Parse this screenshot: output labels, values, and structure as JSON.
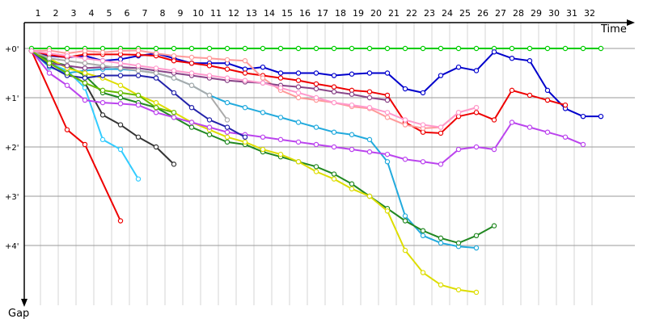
{
  "chart_data": {
    "type": "line",
    "title": "",
    "xlabel": "Time",
    "ylabel": "Gap",
    "x_ticks": [
      "1",
      "2",
      "3",
      "4",
      "5",
      "6",
      "7",
      "8",
      "9",
      "10",
      "11",
      "12",
      "13",
      "14",
      "15",
      "16",
      "17",
      "18",
      "19",
      "20",
      "21",
      "22",
      "23",
      "24",
      "25",
      "26",
      "27",
      "28",
      "29",
      "30",
      "31",
      "32"
    ],
    "y_ticks": [
      "+0'",
      "+1'",
      "+2'",
      "+3'",
      "+4'"
    ],
    "y_unit": "minutes",
    "xlim": [
      0,
      33
    ],
    "ylim": [
      0,
      5.0
    ],
    "y_direction": "down",
    "grid": true,
    "legend": "none",
    "series": [
      {
        "color": "#00cc00",
        "x": [
          1,
          2,
          3,
          4,
          5,
          6,
          7,
          8,
          9,
          10,
          11,
          12,
          13,
          14,
          15,
          16,
          17,
          18,
          19,
          20,
          21,
          22,
          23,
          24,
          25,
          26,
          27,
          28,
          29,
          30,
          31,
          32,
          33
        ],
        "values": [
          0,
          0,
          0,
          0,
          0,
          0,
          0,
          0,
          0,
          0,
          0,
          0,
          0,
          0,
          0,
          0,
          0,
          0,
          0,
          0,
          0,
          0,
          0,
          0,
          0,
          0,
          0,
          0,
          0,
          0,
          0,
          0,
          0
        ]
      },
      {
        "color": "#0000cc",
        "x": [
          1,
          2,
          3,
          4,
          5,
          6,
          7,
          8,
          9,
          10,
          11,
          12,
          13,
          14,
          15,
          16,
          17,
          18,
          19,
          20,
          21,
          22,
          23,
          24,
          25,
          26,
          27,
          28,
          29,
          30,
          31,
          32,
          33
        ],
        "values": [
          0.05,
          0.15,
          0.18,
          0.15,
          0.25,
          0.22,
          0.15,
          0.1,
          0.2,
          0.3,
          0.3,
          0.3,
          0.42,
          0.38,
          0.5,
          0.5,
          0.5,
          0.55,
          0.52,
          0.5,
          0.5,
          0.82,
          0.9,
          0.55,
          0.38,
          0.45,
          0.07,
          0.2,
          0.25,
          0.85,
          1.22,
          1.38,
          1.38
        ]
      },
      {
        "color": "#ee0000",
        "x": [
          1,
          2,
          3,
          4,
          5,
          6,
          7,
          8,
          9,
          10,
          11,
          12,
          13,
          14,
          15,
          16,
          17,
          18,
          19,
          20,
          21,
          22,
          23,
          24,
          25,
          26,
          27,
          28,
          29,
          30,
          31
        ],
        "values": [
          0.05,
          0.13,
          0.18,
          0.12,
          0.12,
          0.12,
          0.13,
          0.15,
          0.25,
          0.3,
          0.35,
          0.42,
          0.5,
          0.55,
          0.6,
          0.65,
          0.72,
          0.78,
          0.85,
          0.88,
          0.95,
          1.5,
          1.7,
          1.72,
          1.38,
          1.3,
          1.45,
          0.85,
          0.95,
          1.05,
          1.15
        ]
      },
      {
        "color": "#ff9999",
        "x": [
          1,
          2,
          3,
          4,
          5,
          6,
          7,
          8,
          9,
          10,
          11,
          12,
          13,
          14,
          15,
          16,
          17,
          18,
          19,
          20,
          21,
          22,
          23,
          24,
          25,
          26
        ],
        "values": [
          0.05,
          0.04,
          0.1,
          0.05,
          0.08,
          0.05,
          0.04,
          0.1,
          0.15,
          0.18,
          0.2,
          0.23,
          0.25,
          0.6,
          0.85,
          1.0,
          1.05,
          1.1,
          1.18,
          1.22,
          1.4,
          1.55,
          1.62,
          1.6,
          1.3,
          1.2
        ]
      },
      {
        "color": "#ee0000",
        "x": [
          1,
          3,
          4,
          6
        ],
        "values": [
          0.05,
          1.65,
          1.95,
          3.5
        ]
      },
      {
        "color": "#33ccff",
        "x": [
          1,
          2,
          3,
          4,
          5,
          6,
          7
        ],
        "values": [
          0.05,
          0.3,
          0.45,
          0.8,
          1.85,
          2.05,
          2.65
        ]
      },
      {
        "color": "#333333",
        "x": [
          1,
          2,
          3,
          4,
          5,
          6,
          7,
          8,
          9
        ],
        "values": [
          0.05,
          0.3,
          0.5,
          0.7,
          1.35,
          1.55,
          1.8,
          2.0,
          2.35
        ]
      },
      {
        "color": "#22aadd",
        "x": [
          1,
          2,
          3,
          4,
          5,
          6,
          7,
          8,
          9,
          10,
          11,
          12,
          13,
          14,
          15,
          16,
          17,
          18,
          19,
          20,
          21,
          22,
          23,
          24,
          25,
          26
        ],
        "values": [
          0.05,
          0.38,
          0.5,
          0.45,
          0.42,
          0.42,
          0.45,
          0.5,
          0.6,
          0.75,
          0.95,
          1.1,
          1.2,
          1.3,
          1.4,
          1.5,
          1.6,
          1.7,
          1.75,
          1.85,
          2.3,
          3.4,
          3.8,
          3.95,
          4.02,
          4.05
        ]
      },
      {
        "color": "#228822",
        "x": [
          1,
          2,
          3,
          4,
          5,
          6,
          7,
          8,
          9,
          10,
          11,
          12,
          13,
          14,
          15,
          16,
          17,
          18,
          19,
          20,
          21,
          22,
          23,
          24,
          25,
          26,
          27
        ],
        "values": [
          0.05,
          0.25,
          0.35,
          0.55,
          0.9,
          1.0,
          1.1,
          1.2,
          1.4,
          1.6,
          1.75,
          1.9,
          1.95,
          2.1,
          2.2,
          2.3,
          2.4,
          2.55,
          2.75,
          3.0,
          3.25,
          3.5,
          3.7,
          3.85,
          3.95,
          3.8,
          3.6
        ]
      },
      {
        "color": "#dddd00",
        "x": [
          1,
          2,
          3,
          4,
          5,
          6,
          7,
          8,
          9,
          10,
          11,
          12,
          13,
          14,
          15,
          16,
          17,
          18,
          19,
          20,
          21,
          22,
          23,
          24,
          25,
          26
        ],
        "values": [
          0.05,
          0.2,
          0.4,
          0.5,
          0.6,
          0.75,
          0.95,
          1.1,
          1.3,
          1.5,
          1.65,
          1.8,
          1.9,
          2.05,
          2.15,
          2.3,
          2.5,
          2.65,
          2.85,
          3.0,
          3.3,
          4.1,
          4.55,
          4.8,
          4.9,
          4.95
        ]
      },
      {
        "color": "#bb44ee",
        "x": [
          1,
          2,
          3,
          4,
          5,
          6,
          7,
          8,
          9,
          10,
          11,
          12,
          13,
          14,
          15,
          16,
          17,
          18,
          19,
          20,
          21,
          22,
          23,
          24,
          25,
          26,
          27,
          28,
          29,
          30,
          31,
          32
        ],
        "values": [
          0.05,
          0.5,
          0.75,
          1.05,
          1.1,
          1.12,
          1.15,
          1.3,
          1.4,
          1.5,
          1.6,
          1.7,
          1.75,
          1.8,
          1.85,
          1.9,
          1.95,
          2.0,
          2.05,
          2.1,
          2.15,
          2.25,
          2.3,
          2.35,
          2.05,
          2.0,
          2.05,
          1.5,
          1.6,
          1.7,
          1.8,
          1.95
        ]
      },
      {
        "color": "#884488",
        "x": [
          1,
          2,
          3,
          4,
          5,
          6,
          7,
          8,
          9,
          10,
          11,
          12,
          13,
          14,
          15,
          16,
          17,
          18,
          19,
          20,
          21
        ],
        "values": [
          0.05,
          0.3,
          0.35,
          0.4,
          0.38,
          0.38,
          0.4,
          0.45,
          0.5,
          0.55,
          0.6,
          0.65,
          0.68,
          0.7,
          0.75,
          0.78,
          0.82,
          0.88,
          0.93,
          1.0,
          1.05
        ]
      },
      {
        "color": "#aaaaaa",
        "x": [
          1,
          2,
          3,
          4,
          5,
          6,
          7,
          8,
          9,
          10,
          11,
          12
        ],
        "values": [
          0.05,
          0.2,
          0.25,
          0.3,
          0.35,
          0.4,
          0.45,
          0.5,
          0.6,
          0.75,
          0.95,
          1.45
        ]
      },
      {
        "color": "#2222aa",
        "x": [
          1,
          2,
          3,
          4,
          5,
          6,
          7,
          8,
          9,
          10,
          11,
          12,
          13
        ],
        "values": [
          0.05,
          0.35,
          0.55,
          0.6,
          0.55,
          0.55,
          0.55,
          0.6,
          0.9,
          1.2,
          1.45,
          1.6,
          1.8
        ]
      },
      {
        "color": "#66bb00",
        "x": [
          1,
          2,
          3,
          4,
          5,
          6,
          7,
          8,
          9
        ],
        "values": [
          0.05,
          0.3,
          0.5,
          0.7,
          0.85,
          0.9,
          0.95,
          1.2,
          1.3
        ]
      },
      {
        "color": "#ff99cc",
        "x": [
          1,
          2,
          3,
          4,
          5,
          6,
          7,
          8,
          9,
          10,
          11,
          12,
          13,
          14,
          15,
          16,
          17,
          18,
          19,
          20,
          21,
          22,
          23,
          24,
          25,
          26
        ],
        "values": [
          0.05,
          0.1,
          0.15,
          0.2,
          0.25,
          0.3,
          0.35,
          0.4,
          0.45,
          0.5,
          0.55,
          0.6,
          0.65,
          0.7,
          0.8,
          0.9,
          1.0,
          1.1,
          1.15,
          1.2,
          1.3,
          1.45,
          1.55,
          1.6,
          1.3,
          1.2
        ]
      }
    ]
  }
}
